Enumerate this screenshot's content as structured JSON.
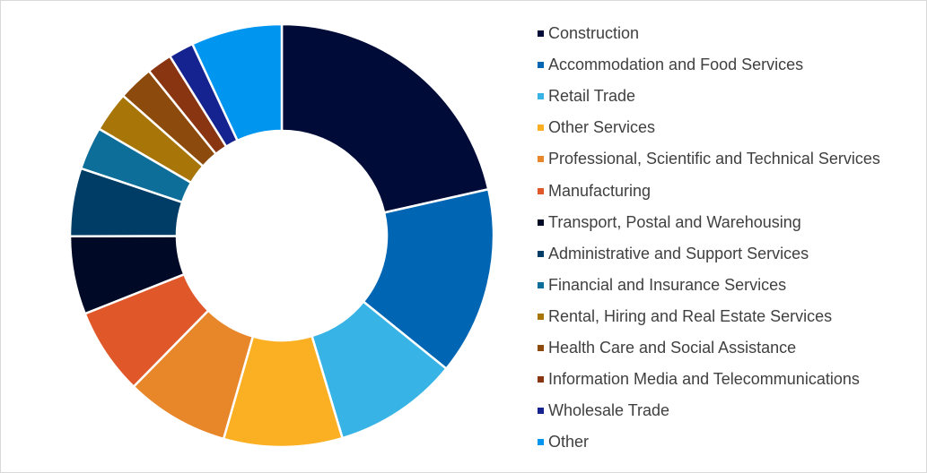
{
  "chart_data": {
    "type": "pie",
    "donut": true,
    "legend_position": "right",
    "categories": [
      "Construction",
      "Accommodation and Food Services",
      "Retail Trade",
      "Other Services",
      "Professional, Scientific and Technical Services",
      "Manufacturing",
      "Transport, Postal and Warehousing",
      "Administrative and Support Services",
      "Financial and Insurance Services",
      "Rental, Hiring and Real Estate Services",
      "Health Care and Social Assistance",
      "Information Media and Telecommunications",
      "Wholesale Trade",
      "Other"
    ],
    "values": [
      22.3,
      14.9,
      9.9,
      9.4,
      8.2,
      6.9,
      6.2,
      5.4,
      3.4,
      3.2,
      2.8,
      2.0,
      2.0,
      7.2
    ],
    "colors": [
      "#000b38",
      "#0066b3",
      "#38b3e6",
      "#fbb024",
      "#e8862a",
      "#e0582a",
      "#000a26",
      "#003d66",
      "#0d6e99",
      "#a87508",
      "#8c4b0c",
      "#8a3512",
      "#14238f",
      "#0096f0"
    ]
  }
}
